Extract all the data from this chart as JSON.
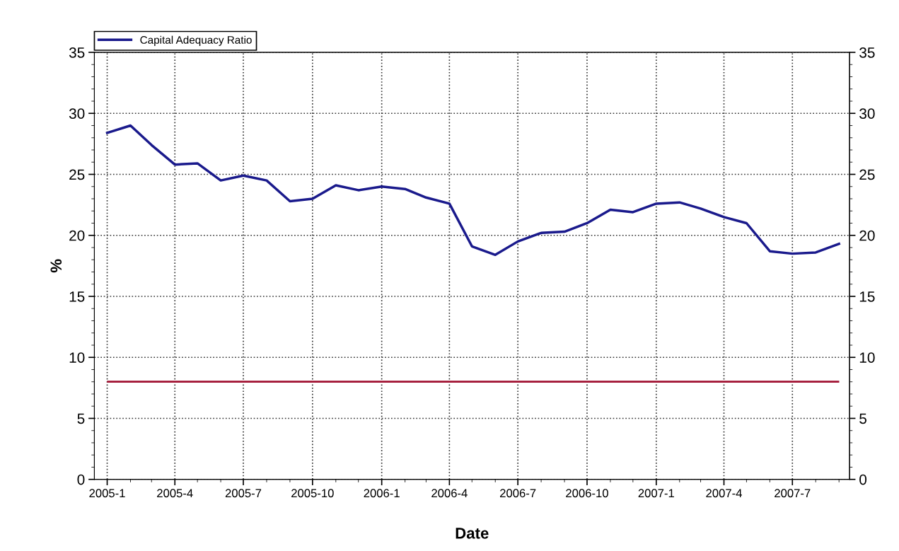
{
  "chart_data": {
    "type": "line",
    "xlabel": "Date",
    "ylabel": "%",
    "x": [
      "2005-01",
      "2005-02",
      "2005-03",
      "2005-04",
      "2005-05",
      "2005-06",
      "2005-07",
      "2005-08",
      "2005-09",
      "2005-10",
      "2005-11",
      "2005-12",
      "2006-01",
      "2006-02",
      "2006-03",
      "2006-04",
      "2006-05",
      "2006-06",
      "2006-07",
      "2006-08",
      "2006-09",
      "2006-10",
      "2006-11",
      "2006-12",
      "2007-01",
      "2007-02",
      "2007-03",
      "2007-04",
      "2007-05",
      "2007-06",
      "2007-07",
      "2007-08",
      "2007-09"
    ],
    "series": [
      {
        "name": "Capital Adequacy Ratio",
        "color": "#1a1a8c",
        "values": [
          28.4,
          29.0,
          27.4,
          25.8,
          25.9,
          24.5,
          24.9,
          24.5,
          22.8,
          23.0,
          24.1,
          23.7,
          24.0,
          23.8,
          23.1,
          22.6,
          19.1,
          18.4,
          19.5,
          20.2,
          20.3,
          21.0,
          22.1,
          21.9,
          22.6,
          22.7,
          22.2,
          21.5,
          21.0,
          18.7,
          18.5,
          18.6,
          19.3
        ]
      }
    ],
    "xlim": [
      "2004-12-15",
      "2007-09-15"
    ],
    "xticks": [
      {
        "value": "2005-01",
        "label": "2005-1"
      },
      {
        "value": "2005-04",
        "label": "2005-4"
      },
      {
        "value": "2005-07",
        "label": "2005-7"
      },
      {
        "value": "2005-10",
        "label": "2005-10"
      },
      {
        "value": "2006-01",
        "label": "2006-1"
      },
      {
        "value": "2006-04",
        "label": "2006-4"
      },
      {
        "value": "2006-07",
        "label": "2006-7"
      },
      {
        "value": "2006-10",
        "label": "2006-10"
      },
      {
        "value": "2007-01",
        "label": "2007-1"
      },
      {
        "value": "2007-04",
        "label": "2007-4"
      },
      {
        "value": "2007-07",
        "label": "2007-7"
      }
    ],
    "ylim": [
      0,
      35
    ],
    "yticks": [
      0,
      5,
      10,
      15,
      20,
      25,
      30,
      35
    ],
    "y2lim": [
      0,
      35
    ],
    "y2ticks": [
      0,
      5,
      10,
      15,
      20,
      25,
      30,
      35
    ],
    "ref_lines": [
      {
        "axis": "y",
        "value": 8,
        "color": "#a01030"
      }
    ],
    "grid": true,
    "legend": "top left",
    "marker": "none",
    "line_style": "solid"
  }
}
